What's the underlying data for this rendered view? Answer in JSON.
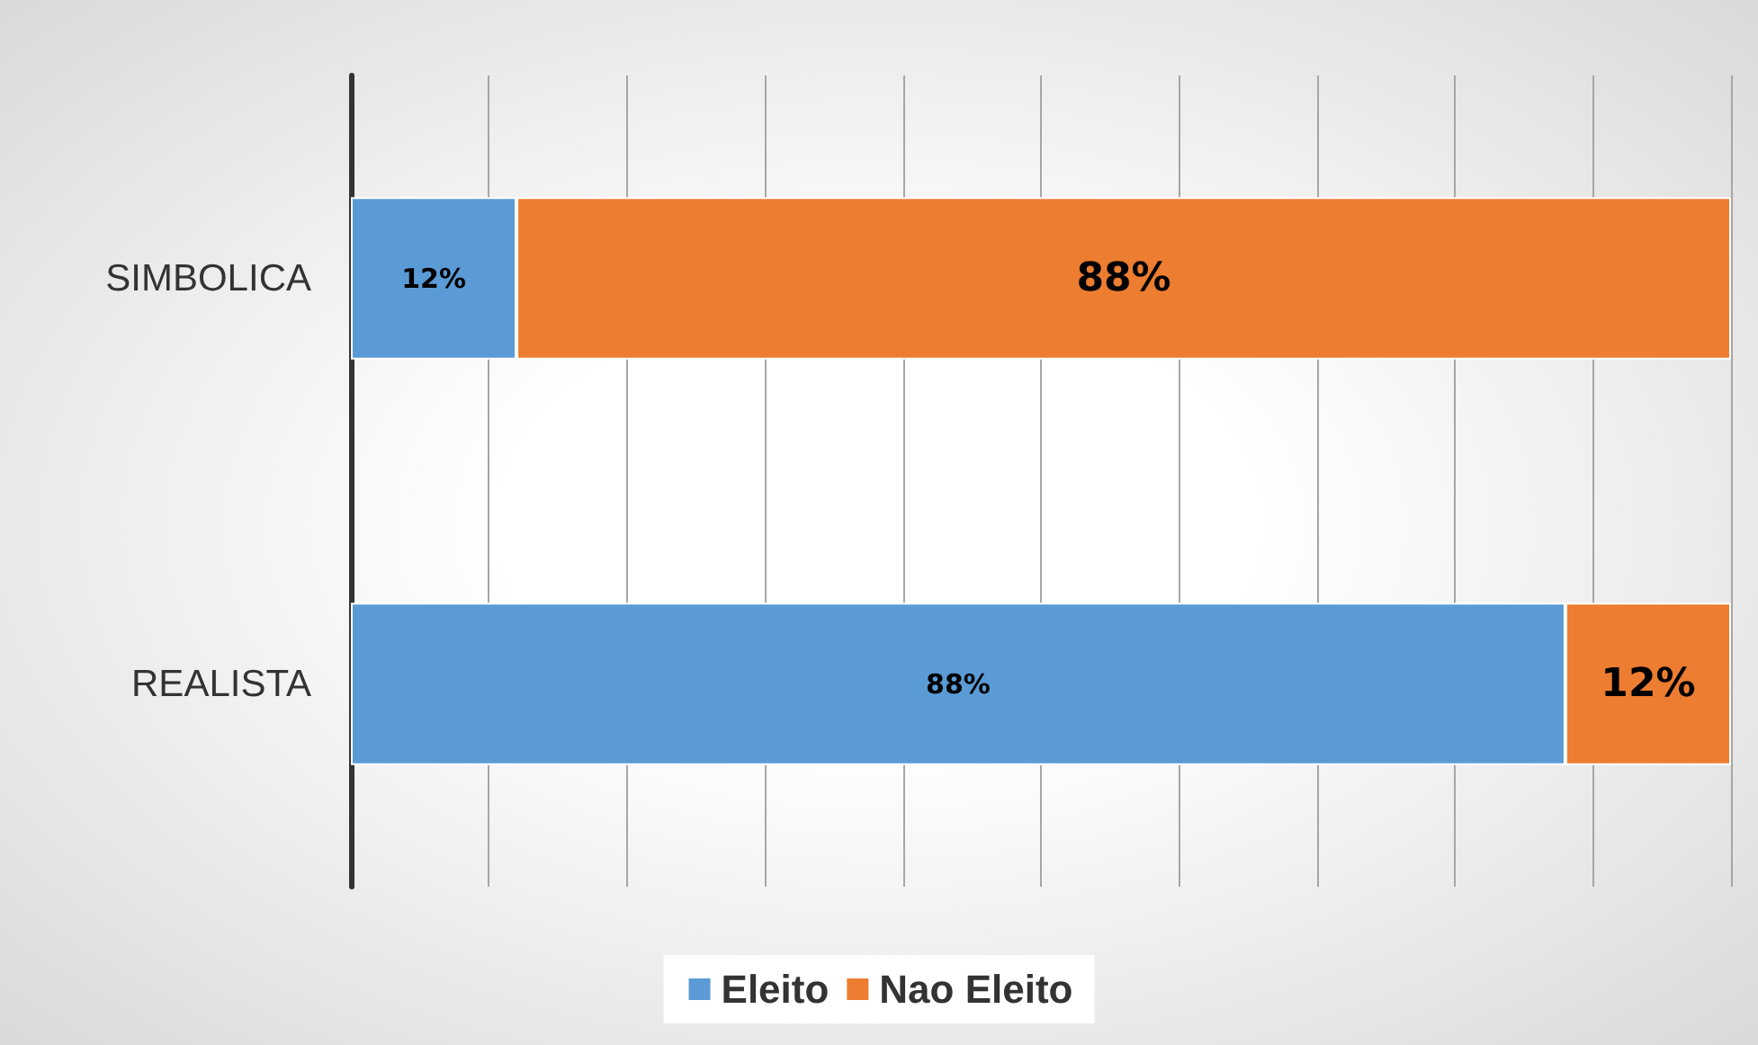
{
  "chart_data": {
    "type": "bar",
    "orientation": "horizontal",
    "stacked": true,
    "categories": [
      "SIMBOLICA",
      "REALISTA"
    ],
    "series": [
      {
        "name": "Eleito",
        "color": "#5b9bd5",
        "values": [
          12,
          88
        ],
        "value_labels": [
          "12%",
          "88%"
        ]
      },
      {
        "name": "Nao Eleito",
        "color": "#ed7d31",
        "values": [
          88,
          12
        ],
        "value_labels": [
          "88%",
          "12%"
        ]
      }
    ],
    "xlim": [
      0,
      100
    ],
    "xticks": [
      {
        "value": 0,
        "label": null
      },
      {
        "value": 10,
        "label": null
      },
      {
        "value": 20,
        "label": null
      },
      {
        "value": 30,
        "label": null
      },
      {
        "value": 40,
        "label": null
      },
      {
        "value": 50,
        "label": null
      },
      {
        "value": 60,
        "label": null
      },
      {
        "value": 70,
        "label": null
      },
      {
        "value": 80,
        "label": null
      },
      {
        "value": 90,
        "label": null
      },
      {
        "value": 100,
        "label": null
      }
    ],
    "tick_labels": "y",
    "grid": "x",
    "legend": "bottom"
  }
}
